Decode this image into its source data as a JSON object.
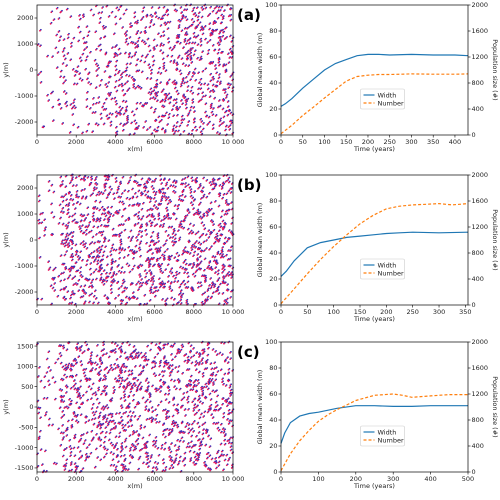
{
  "panel_labels": [
    "(a)",
    "(b)",
    "(c)"
  ],
  "chart_data": [
    {
      "type": "scatter",
      "panel": "(a)",
      "xlabel": "x(m)",
      "ylabel": "y(m)",
      "xlim": [
        0,
        10000
      ],
      "ylim": [
        -2500,
        2500
      ],
      "xticks": [
        "0",
        "2000",
        "4000",
        "6000",
        "8000",
        "10 000"
      ],
      "yticks": [
        "-2000",
        "-1000",
        "0",
        "1000",
        "2000"
      ],
      "yticks_values": [
        -2000,
        -1000,
        0,
        1000,
        2000
      ],
      "density_profile": "increasing with x",
      "approx_points": 900,
      "colors": {
        "front": "#e8185a",
        "back": "#3b2db5"
      }
    },
    {
      "type": "line",
      "panel": "(a)",
      "xlabel": "Time (years)",
      "ylabel": "Global mean width (m)",
      "ylabel_right": "Population size (#)",
      "xlim": [
        0,
        430
      ],
      "ylim": [
        0,
        100
      ],
      "ylim_right": [
        0,
        2000
      ],
      "xticks": [
        "0",
        "50",
        "100",
        "150",
        "200",
        "250",
        "300",
        "350",
        "400"
      ],
      "yticks": [
        "0",
        "20",
        "40",
        "60",
        "80",
        "100"
      ],
      "yticks_right": [
        "0",
        "400",
        "800",
        "1200",
        "1600",
        "2000"
      ],
      "legend": [
        "Width",
        "Number"
      ],
      "legend_placement": "lower-center",
      "series": [
        {
          "name": "Width",
          "color": "#1f77b4",
          "style": "solid",
          "axis": "left",
          "x": [
            0,
            10,
            25,
            50,
            75,
            100,
            125,
            150,
            175,
            200,
            225,
            250,
            300,
            350,
            400,
            430
          ],
          "y": [
            22,
            24,
            28,
            36,
            43,
            50,
            55,
            58,
            61,
            62,
            62,
            61.5,
            62,
            61.5,
            61.5,
            61
          ]
        },
        {
          "name": "Number",
          "color": "#ff7f0e",
          "style": "dashed",
          "axis": "right",
          "x": [
            0,
            25,
            50,
            75,
            100,
            125,
            150,
            175,
            200,
            225,
            250,
            300,
            350,
            400,
            430
          ],
          "y": [
            20,
            150,
            300,
            430,
            570,
            700,
            830,
            900,
            920,
            930,
            930,
            940,
            935,
            935,
            940
          ]
        }
      ]
    },
    {
      "type": "scatter",
      "panel": "(b)",
      "xlabel": "x(m)",
      "ylabel": "y(m)",
      "xlim": [
        0,
        10000
      ],
      "ylim": [
        -2500,
        2500
      ],
      "xticks": [
        "0",
        "2000",
        "4000",
        "6000",
        "8000",
        "10 000"
      ],
      "yticks": [
        "-2000",
        "-1000",
        "0",
        "1000",
        "2000"
      ],
      "yticks_values": [
        -2000,
        -1000,
        0,
        1000,
        2000
      ],
      "density_profile": "dense throughout, sparse near x=0",
      "approx_points": 1300,
      "colors": {
        "front": "#e8185a",
        "back": "#3b2db5"
      }
    },
    {
      "type": "line",
      "panel": "(b)",
      "xlabel": "Time (years)",
      "ylabel": "Global mean width (m)",
      "ylabel_right": "Population size (#)",
      "xlim": [
        0,
        355
      ],
      "ylim": [
        0,
        100
      ],
      "ylim_right": [
        0,
        2000
      ],
      "xticks": [
        "0",
        "50",
        "100",
        "150",
        "200",
        "250",
        "300",
        "350"
      ],
      "yticks": [
        "0",
        "20",
        "40",
        "60",
        "80",
        "100"
      ],
      "yticks_right": [
        "0",
        "400",
        "800",
        "1200",
        "1600",
        "2000"
      ],
      "legend": [
        "Width",
        "Number"
      ],
      "legend_placement": "lower-center",
      "series": [
        {
          "name": "Width",
          "color": "#1f77b4",
          "style": "solid",
          "axis": "left",
          "x": [
            0,
            10,
            25,
            50,
            75,
            100,
            125,
            150,
            175,
            200,
            225,
            250,
            300,
            355
          ],
          "y": [
            22,
            26,
            34,
            44,
            48,
            50,
            52,
            53,
            54,
            55,
            55.5,
            56,
            55.5,
            56
          ]
        },
        {
          "name": "Number",
          "color": "#ff7f0e",
          "style": "dashed",
          "axis": "right",
          "x": [
            0,
            25,
            50,
            75,
            100,
            125,
            150,
            175,
            200,
            225,
            250,
            275,
            300,
            325,
            355
          ],
          "y": [
            20,
            250,
            480,
            700,
            900,
            1080,
            1250,
            1380,
            1480,
            1520,
            1540,
            1550,
            1560,
            1540,
            1560
          ]
        }
      ]
    },
    {
      "type": "scatter",
      "panel": "(c)",
      "xlabel": "x(m)",
      "ylabel": "y(m)",
      "xlim": [
        0,
        10000
      ],
      "ylim": [
        -1600,
        1600
      ],
      "xticks": [
        "0",
        "2000",
        "4000",
        "6000",
        "8000",
        "10 000"
      ],
      "yticks": [
        "-1500",
        "-1000",
        "-500",
        "0",
        "500",
        "1000",
        "1500"
      ],
      "yticks_values": [
        -1500,
        -1000,
        -500,
        0,
        500,
        1000,
        1500
      ],
      "density_profile": "dense throughout, sparse near x=0",
      "approx_points": 1200,
      "colors": {
        "front": "#e8185a",
        "back": "#3b2db5"
      }
    },
    {
      "type": "line",
      "panel": "(c)",
      "xlabel": "Time (years)",
      "ylabel": "Global mean width (m)",
      "ylabel_right": "Population size (#)",
      "xlim": [
        0,
        500
      ],
      "ylim": [
        0,
        100
      ],
      "ylim_right": [
        0,
        2000
      ],
      "xticks": [
        "0",
        "100",
        "200",
        "300",
        "400",
        "500"
      ],
      "yticks": [
        "0",
        "20",
        "40",
        "60",
        "80",
        "100"
      ],
      "yticks_right": [
        "0",
        "400",
        "800",
        "1200",
        "1600",
        "2000"
      ],
      "legend": [
        "Width",
        "Number"
      ],
      "legend_placement": "lower-center",
      "series": [
        {
          "name": "Width",
          "color": "#1f77b4",
          "style": "solid",
          "axis": "left",
          "x": [
            0,
            10,
            25,
            50,
            75,
            100,
            150,
            200,
            250,
            300,
            350,
            400,
            450,
            500
          ],
          "y": [
            22,
            30,
            38,
            43,
            45,
            46,
            49,
            51,
            51,
            50.5,
            50.5,
            51,
            51,
            51
          ]
        },
        {
          "name": "Number",
          "color": "#ff7f0e",
          "style": "dashed",
          "axis": "right",
          "x": [
            0,
            25,
            50,
            75,
            100,
            125,
            150,
            200,
            250,
            300,
            325,
            350,
            400,
            450,
            500
          ],
          "y": [
            20,
            280,
            480,
            640,
            780,
            880,
            960,
            1100,
            1180,
            1200,
            1180,
            1150,
            1170,
            1190,
            1190
          ]
        }
      ]
    }
  ]
}
